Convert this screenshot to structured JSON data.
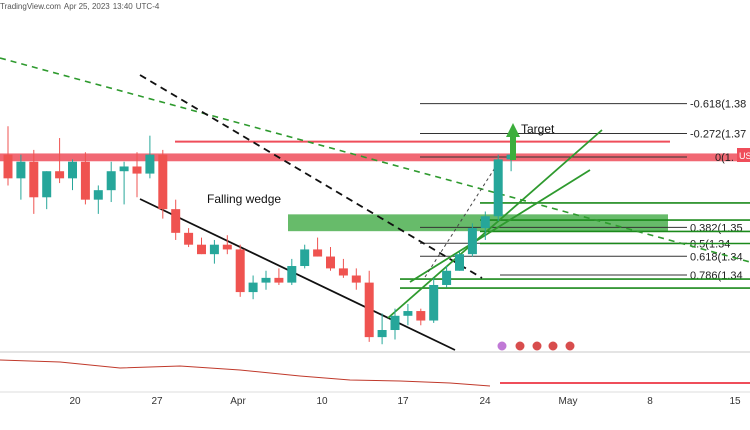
{
  "header": {
    "source": "TradingView.com",
    "date": "Apr 25, 2023",
    "time": "13:40",
    "tz": "UTC-4"
  },
  "colors": {
    "up": "#26a69a",
    "down": "#ef5350",
    "fib": "#000000",
    "support": "#1b8a1b",
    "resistance": "#ef4d5a",
    "zone": "#4caf50",
    "trend": "#2e9a2e"
  },
  "chart_data": {
    "type": "candlestick",
    "candles": [
      {
        "o": 1.385,
        "h": 1.397,
        "l": 1.372,
        "c": 1.375
      },
      {
        "o": 1.375,
        "h": 1.385,
        "l": 1.366,
        "c": 1.382
      },
      {
        "o": 1.382,
        "h": 1.387,
        "l": 1.36,
        "c": 1.367
      },
      {
        "o": 1.367,
        "h": 1.378,
        "l": 1.362,
        "c": 1.378
      },
      {
        "o": 1.378,
        "h": 1.392,
        "l": 1.373,
        "c": 1.375
      },
      {
        "o": 1.375,
        "h": 1.383,
        "l": 1.37,
        "c": 1.382
      },
      {
        "o": 1.382,
        "h": 1.386,
        "l": 1.364,
        "c": 1.366
      },
      {
        "o": 1.366,
        "h": 1.372,
        "l": 1.36,
        "c": 1.37
      },
      {
        "o": 1.37,
        "h": 1.382,
        "l": 1.365,
        "c": 1.378
      },
      {
        "o": 1.378,
        "h": 1.382,
        "l": 1.364,
        "c": 1.38
      },
      {
        "o": 1.38,
        "h": 1.386,
        "l": 1.367,
        "c": 1.377
      },
      {
        "o": 1.377,
        "h": 1.393,
        "l": 1.375,
        "c": 1.385
      },
      {
        "o": 1.385,
        "h": 1.387,
        "l": 1.358,
        "c": 1.362
      },
      {
        "o": 1.362,
        "h": 1.366,
        "l": 1.349,
        "c": 1.352
      },
      {
        "o": 1.352,
        "h": 1.354,
        "l": 1.346,
        "c": 1.347
      },
      {
        "o": 1.347,
        "h": 1.35,
        "l": 1.343,
        "c": 1.343
      },
      {
        "o": 1.343,
        "h": 1.349,
        "l": 1.339,
        "c": 1.347
      },
      {
        "o": 1.347,
        "h": 1.351,
        "l": 1.343,
        "c": 1.345
      },
      {
        "o": 1.345,
        "h": 1.347,
        "l": 1.325,
        "c": 1.327
      },
      {
        "o": 1.327,
        "h": 1.334,
        "l": 1.324,
        "c": 1.331
      },
      {
        "o": 1.331,
        "h": 1.336,
        "l": 1.328,
        "c": 1.333
      },
      {
        "o": 1.333,
        "h": 1.337,
        "l": 1.33,
        "c": 1.331
      },
      {
        "o": 1.331,
        "h": 1.341,
        "l": 1.33,
        "c": 1.338
      },
      {
        "o": 1.338,
        "h": 1.347,
        "l": 1.337,
        "c": 1.345
      },
      {
        "o": 1.345,
        "h": 1.35,
        "l": 1.342,
        "c": 1.342
      },
      {
        "o": 1.342,
        "h": 1.346,
        "l": 1.336,
        "c": 1.337
      },
      {
        "o": 1.337,
        "h": 1.341,
        "l": 1.333,
        "c": 1.334
      },
      {
        "o": 1.334,
        "h": 1.337,
        "l": 1.328,
        "c": 1.331
      },
      {
        "o": 1.331,
        "h": 1.336,
        "l": 1.306,
        "c": 1.308
      },
      {
        "o": 1.308,
        "h": 1.318,
        "l": 1.305,
        "c": 1.311
      },
      {
        "o": 1.311,
        "h": 1.32,
        "l": 1.307,
        "c": 1.317
      },
      {
        "o": 1.317,
        "h": 1.322,
        "l": 1.313,
        "c": 1.319
      },
      {
        "o": 1.319,
        "h": 1.32,
        "l": 1.313,
        "c": 1.315
      },
      {
        "o": 1.315,
        "h": 1.333,
        "l": 1.314,
        "c": 1.33
      },
      {
        "o": 1.33,
        "h": 1.338,
        "l": 1.329,
        "c": 1.336
      },
      {
        "o": 1.336,
        "h": 1.344,
        "l": 1.336,
        "c": 1.343
      },
      {
        "o": 1.343,
        "h": 1.356,
        "l": 1.342,
        "c": 1.354
      },
      {
        "o": 1.354,
        "h": 1.361,
        "l": 1.349,
        "c": 1.359
      },
      {
        "o": 1.359,
        "h": 1.385,
        "l": 1.357,
        "c": 1.383
      },
      {
        "o": 1.383,
        "h": 1.388,
        "l": 1.378,
        "c": 1.385
      }
    ],
    "x_tick_labels": [
      "20",
      "27",
      "Apr",
      "10",
      "17",
      "24",
      "May",
      "8",
      "15"
    ],
    "fib_levels": [
      {
        "label": "-0.618(1.38",
        "value": 1.4065
      },
      {
        "label": "-0.272(1.37",
        "value": 1.3939
      },
      {
        "label": "0(1.",
        "value": 1.384
      },
      {
        "label": "0.382(1.35",
        "value": 1.3543
      },
      {
        "label": "0.5(1.34",
        "value": 1.3476
      },
      {
        "label": "0.618(1.34",
        "value": 1.3421
      },
      {
        "label": "0.786(1.34",
        "value": 1.3342
      }
    ],
    "support_levels": [
      1.3646,
      1.3574,
      1.3526,
      1.3475,
      1.3325,
      1.3287
    ],
    "resistance_level": 1.3905,
    "resistance_zone": [
      1.3822,
      1.3855
    ],
    "demand_zone": [
      1.3527,
      1.3598
    ],
    "price_badge": "US",
    "annotations": {
      "pattern": "Falling wedge",
      "target": "Target"
    }
  }
}
